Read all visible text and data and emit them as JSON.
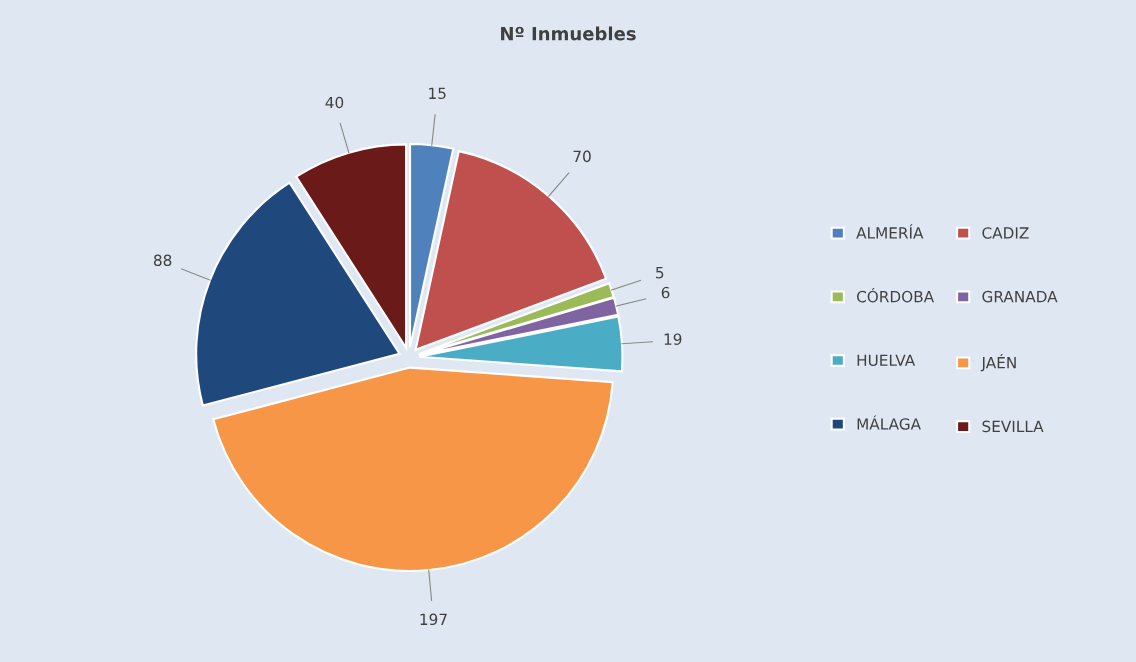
{
  "chart_data": {
    "type": "pie",
    "title": "Nº Inmuebles",
    "categories": [
      "ALMERÍA",
      "CADIZ",
      "CÓRDOBA",
      "GRANADA",
      "HUELVA",
      "JAÉN",
      "MÁLAGA",
      "SEVILLA"
    ],
    "values": [
      15,
      70,
      5,
      6,
      19,
      197,
      88,
      40
    ],
    "colors": [
      "#4f81bd",
      "#c0504d",
      "#9bbb59",
      "#8064a2",
      "#4bacc6",
      "#f79646",
      "#1f497d",
      "#6b1a1a"
    ],
    "data_labels": true,
    "legend": "right"
  }
}
